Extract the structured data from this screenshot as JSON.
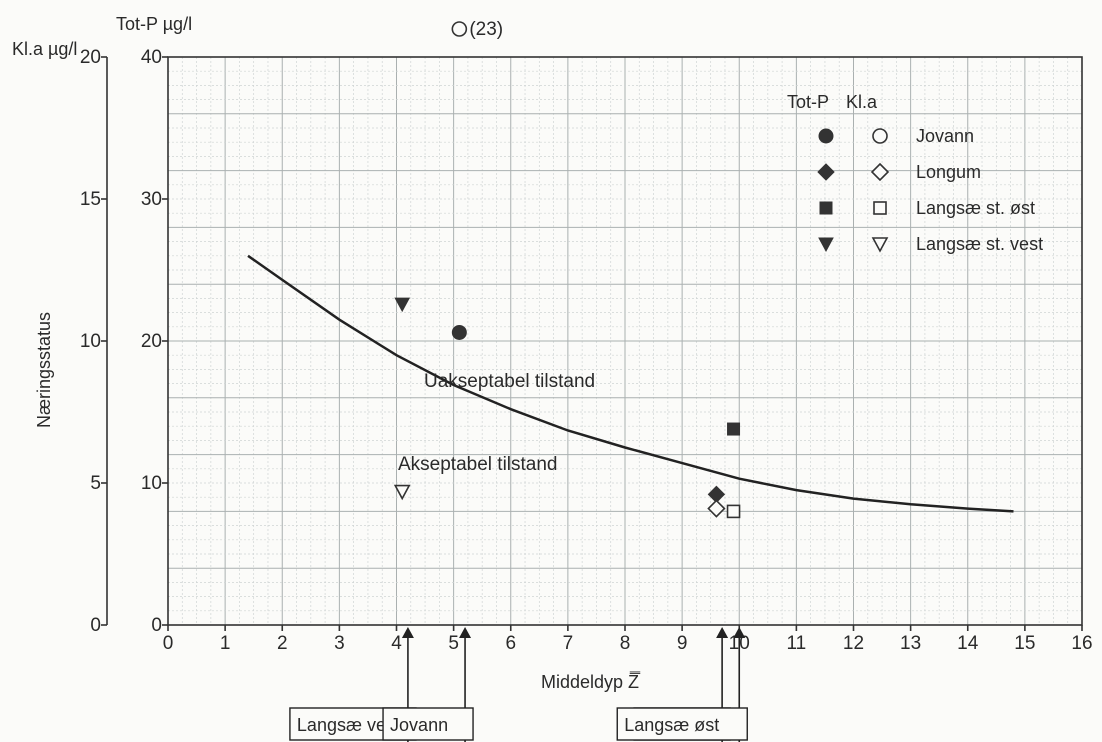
{
  "chart_data": {
    "type": "scatter",
    "xlabel": "Middeldyp Z̿",
    "ylabel": "Næringsstatus",
    "left_axis_kla_label": "Kl.a µg/l",
    "left_axis_totp_label": "Tot-P µg/l",
    "xlim": [
      0,
      16
    ],
    "x_ticks": [
      "0",
      "1",
      "2",
      "3",
      "4",
      "5",
      "6",
      "7",
      "8",
      "9",
      "10",
      "11",
      "12",
      "13",
      "14",
      "15",
      "16"
    ],
    "totp_axis": {
      "range": [
        0,
        40
      ],
      "ticks": [
        "0",
        "10",
        "20",
        "30",
        "40"
      ],
      "values": [
        0,
        10,
        20,
        30,
        40
      ]
    },
    "kla_axis": {
      "range": [
        0,
        20
      ],
      "ticks": [
        "0",
        "5",
        "10",
        "15",
        "20"
      ],
      "values": [
        0,
        5,
        10,
        15,
        20
      ]
    },
    "grid": true,
    "legend": {
      "placement": "top-right",
      "header_totp": "Tot-P",
      "header_kla": "Kl.a",
      "entries": [
        {
          "name": "Jovann",
          "totp_marker": "filled-circle",
          "kla_marker": "open-circle"
        },
        {
          "name": "Longum",
          "totp_marker": "filled-diamond",
          "kla_marker": "open-diamond"
        },
        {
          "name": "Langsæ st. øst",
          "totp_marker": "filled-square",
          "kla_marker": "open-square"
        },
        {
          "name": "Langsæ st. vest",
          "totp_marker": "filled-triangle-down",
          "kla_marker": "open-triangle-down"
        }
      ]
    },
    "series": [
      {
        "name": "Jovann",
        "measure": "Tot-P",
        "marker": "filled-circle",
        "x": 5.1,
        "y": 20.6
      },
      {
        "name": "Jovann",
        "measure": "Kl.a",
        "marker": "open-circle",
        "x": 5.1,
        "y": 23,
        "offscale_label": "(23)"
      },
      {
        "name": "Longum",
        "measure": "Tot-P",
        "marker": "filled-diamond",
        "x": 9.6,
        "y": 9.2
      },
      {
        "name": "Longum",
        "measure": "Kl.a",
        "marker": "open-diamond",
        "x": 9.6,
        "y": 4.1
      },
      {
        "name": "Langsæ st. øst",
        "measure": "Tot-P",
        "marker": "filled-square",
        "x": 9.9,
        "y": 13.8
      },
      {
        "name": "Langsæ st. øst",
        "measure": "Kl.a",
        "marker": "open-square",
        "x": 9.9,
        "y": 4.0
      },
      {
        "name": "Langsæ st. vest",
        "measure": "Tot-P",
        "marker": "filled-triangle-down",
        "x": 4.1,
        "y": 22.6
      },
      {
        "name": "Langsæ st. vest",
        "measure": "Kl.a",
        "marker": "open-triangle-down",
        "x": 4.1,
        "y": 4.7
      }
    ],
    "curve": {
      "x": [
        1.4,
        2,
        3,
        4,
        5,
        6,
        7,
        8,
        9,
        10,
        11,
        12,
        13,
        14,
        14.8
      ],
      "y": [
        26.0,
        24.3,
        21.5,
        19.0,
        16.9,
        15.2,
        13.7,
        12.5,
        11.4,
        10.3,
        9.5,
        8.9,
        8.5,
        8.2,
        8.0
      ]
    },
    "annotations": {
      "above": "Uakseptabel tilstand",
      "below": "Akseptabel tilstand"
    },
    "callouts": [
      {
        "label": "Langsæ vest",
        "x": 4.2
      },
      {
        "label": "Jovann",
        "x": 5.2
      },
      {
        "label": "Longum",
        "x": 9.7
      },
      {
        "label": "Langsæ øst",
        "x": 10.0
      }
    ]
  }
}
